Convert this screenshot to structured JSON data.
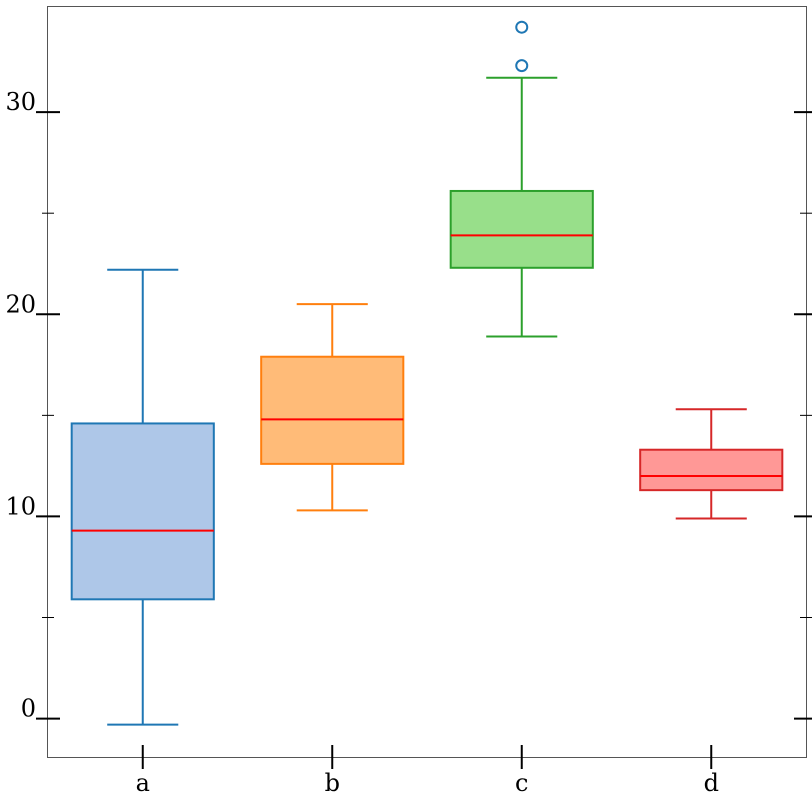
{
  "chart_data": {
    "type": "box",
    "title": "",
    "xlabel": "",
    "ylabel": "",
    "categories": [
      "a",
      "b",
      "c",
      "d"
    ],
    "ylim": [
      -1.9,
      35.2
    ],
    "y_ticks_major": [
      0,
      10,
      20,
      30
    ],
    "y_ticks_minor": [
      5,
      15,
      25
    ],
    "y_tick_labels": [
      "0",
      "10",
      "20",
      "30"
    ],
    "grid": false,
    "boxes": [
      {
        "category": "a",
        "whisker_low": -0.3,
        "q1": 5.9,
        "median": 9.3,
        "q3": 14.6,
        "whisker_high": 22.2,
        "outliers": [],
        "face_color": "#aec7e8",
        "edge_color": "#1f77b4"
      },
      {
        "category": "b",
        "whisker_low": 10.3,
        "q1": 12.6,
        "median": 14.8,
        "q3": 17.9,
        "whisker_high": 20.5,
        "outliers": [],
        "face_color": "#ffbb78",
        "edge_color": "#ff7f0e"
      },
      {
        "category": "c",
        "whisker_low": 18.9,
        "q1": 22.3,
        "median": 23.9,
        "q3": 26.1,
        "whisker_high": 31.7,
        "outliers": [
          32.3,
          34.2
        ],
        "face_color": "#98df8a",
        "edge_color": "#2ca02c",
        "outlier_color": "#1f77b4"
      },
      {
        "category": "d",
        "whisker_low": 9.9,
        "q1": 11.3,
        "median": 12.0,
        "q3": 13.3,
        "whisker_high": 15.3,
        "outliers": [],
        "face_color": "#ff9896",
        "edge_color": "#d62728"
      }
    ],
    "median_color": "#ff0000"
  }
}
